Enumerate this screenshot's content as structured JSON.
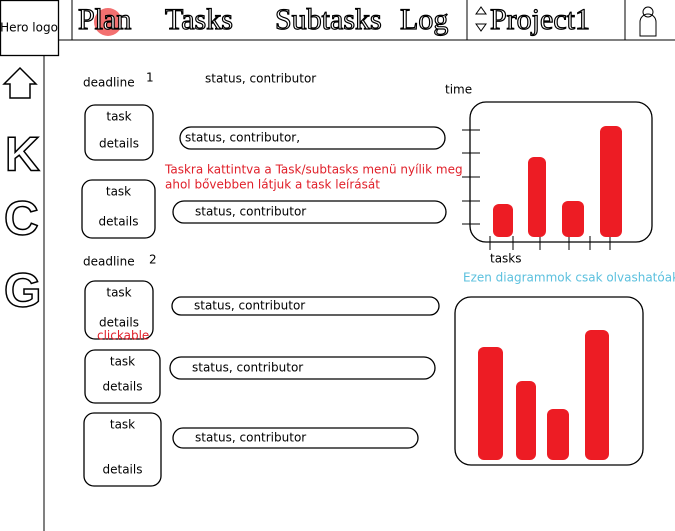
{
  "header": {
    "logo": "Hero logo",
    "nav": [
      "Plan",
      "Tasks",
      "Subtasks",
      "Log"
    ],
    "project": "Project1"
  },
  "sidebar": [
    "K",
    "C",
    "G"
  ],
  "groups": [
    {
      "deadline": "deadline",
      "number": "1",
      "header_status": "status, contributor",
      "tasks": [
        {
          "title": "task",
          "details": "details",
          "status": "status, contributor,"
        },
        {
          "title": "task",
          "details": "details",
          "status": "status, contributor"
        }
      ]
    },
    {
      "deadline": "deadline",
      "number": "2",
      "tasks": [
        {
          "title": "task",
          "details": "details",
          "status": "status, contributor"
        },
        {
          "title": "task",
          "details": "details",
          "status": "status, contributor"
        },
        {
          "title": "task",
          "details": "details",
          "status": "status, contributor"
        }
      ]
    }
  ],
  "note": [
    "Taskra kattintva a Task/subtasks menü nyílik meg",
    "ahol bővebben látjuk a task leírását"
  ],
  "clickable": "clickable",
  "charts": [
    {
      "type": "bar",
      "y_label": "time",
      "x_label": "tasks",
      "color": "#ed1c24",
      "values": [
        33,
        80,
        36,
        111
      ]
    },
    {
      "type": "bar",
      "color": "#ed1c24",
      "values": [
        113,
        79,
        51,
        130
      ]
    }
  ],
  "chart_note": "Ezen diagrammok csak olvashatóak"
}
